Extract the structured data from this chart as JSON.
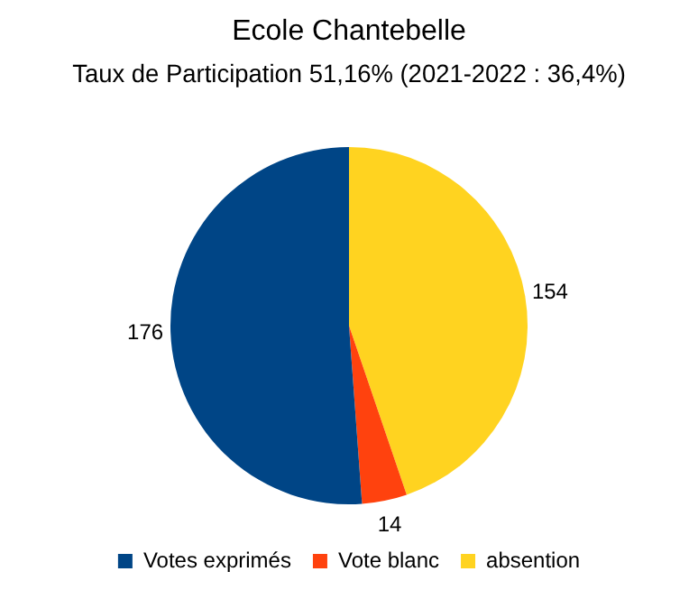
{
  "chart_data": {
    "type": "pie",
    "title": "Ecole Chantebelle",
    "subtitle": "Taux de Participation 51,16% (2021-2022 : 36,4%)",
    "categories": [
      "Votes exprimés",
      "Vote blanc",
      "absention"
    ],
    "values": [
      176,
      14,
      154
    ],
    "colors": [
      "#004586",
      "#ff420e",
      "#ffd320"
    ],
    "data_labels": true,
    "legend": "bottom"
  }
}
